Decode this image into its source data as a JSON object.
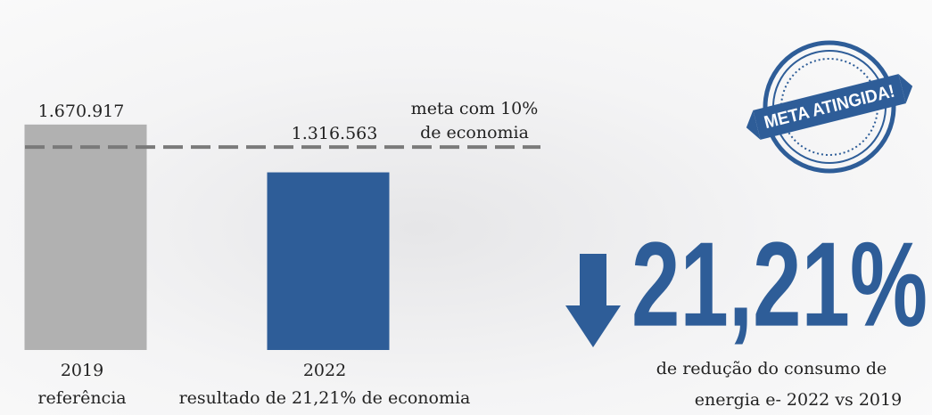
{
  "chart_data": {
    "type": "bar",
    "categories": [
      "2019",
      "2022"
    ],
    "category_notes": [
      "referência",
      "resultado de 21,21% de economia"
    ],
    "values": [
      1670917,
      1316563
    ],
    "value_labels": [
      "1.670.917",
      "1.316.563"
    ],
    "colors": [
      "#b1b1b1",
      "#2e5d98"
    ],
    "ylim": [
      0,
      2000000
    ],
    "target": {
      "value": 1503825,
      "label": [
        "meta com 10%",
        "de economia"
      ],
      "color": "#7a7a7a"
    }
  },
  "stamp": "META ATINGIDA!",
  "highlight": {
    "value": "21,21%",
    "caption": [
      "de redução do consumo de",
      "energia e- 2022 vs 2019"
    ]
  }
}
